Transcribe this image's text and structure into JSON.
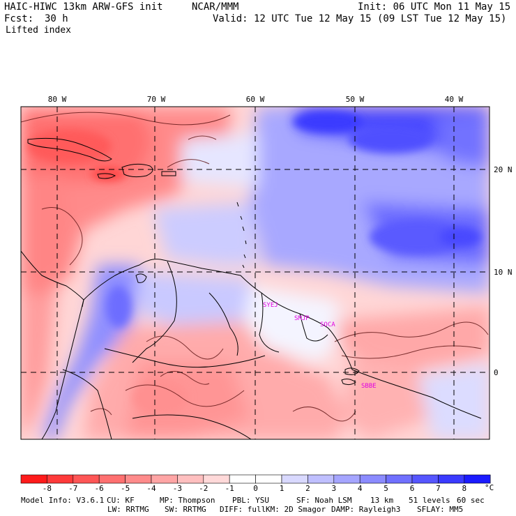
{
  "header": {
    "model_title": "HAIC-HIWC 13km ARW-GFS init",
    "institution": "NCAR/MMM",
    "init": "Init: 06 UTC Mon 11 May 15",
    "fcst_label": "Fcst:",
    "fcst_value": "30 h",
    "valid": "Valid: 12 UTC Tue 12 May 15 (09 LST Tue 12 May 15)",
    "field": "Lifted index"
  },
  "map": {
    "lon_labels": [
      "80 W",
      "70 W",
      "60 W",
      "50 W",
      "40 W"
    ],
    "lat_labels": [
      "20 N",
      "10 N",
      "0"
    ],
    "stations": [
      "SYEJ",
      "SMJP",
      "SOCA",
      "SBBE"
    ],
    "colors": {
      "station": "#e000e0",
      "grid": "#000000",
      "coast": "#000000"
    }
  },
  "colorbar": {
    "ticks": [
      "-8",
      "-7",
      "-6",
      "-5",
      "-4",
      "-3",
      "-2",
      "-1",
      "0",
      "1",
      "2",
      "3",
      "4",
      "5",
      "6",
      "7",
      "8"
    ],
    "unit": "°C",
    "colors": [
      "#ff1b1b",
      "#ff3a3a",
      "#ff5656",
      "#ff7070",
      "#ff8b8b",
      "#ffa5a5",
      "#ffbfbf",
      "#ffd9d9",
      "#ffffff",
      "#ffffff",
      "#d9d9ff",
      "#bfbfff",
      "#a5a5ff",
      "#8b8bff",
      "#7070ff",
      "#5656ff",
      "#3a3aff",
      "#1b1bff"
    ]
  },
  "footer": {
    "line1": [
      {
        "label": "Model Info: V3.6.1"
      },
      {
        "label": "CU: KF"
      },
      {
        "label": "MP: Thompson"
      },
      {
        "label": "PBL: YSU"
      },
      {
        "label": "SF: Noah LSM"
      },
      {
        "label": "13 km"
      },
      {
        "label": "51 levels"
      },
      {
        "label": "60 sec"
      }
    ],
    "line2": [
      {
        "label": "LW: RRTMG"
      },
      {
        "label": "SW: RRTMG"
      },
      {
        "label": "DIFF: full"
      },
      {
        "label": "KM: 2D Smagor"
      },
      {
        "label": "DAMP: Rayleigh3"
      },
      {
        "label": "SFLAY: MM5"
      }
    ]
  }
}
